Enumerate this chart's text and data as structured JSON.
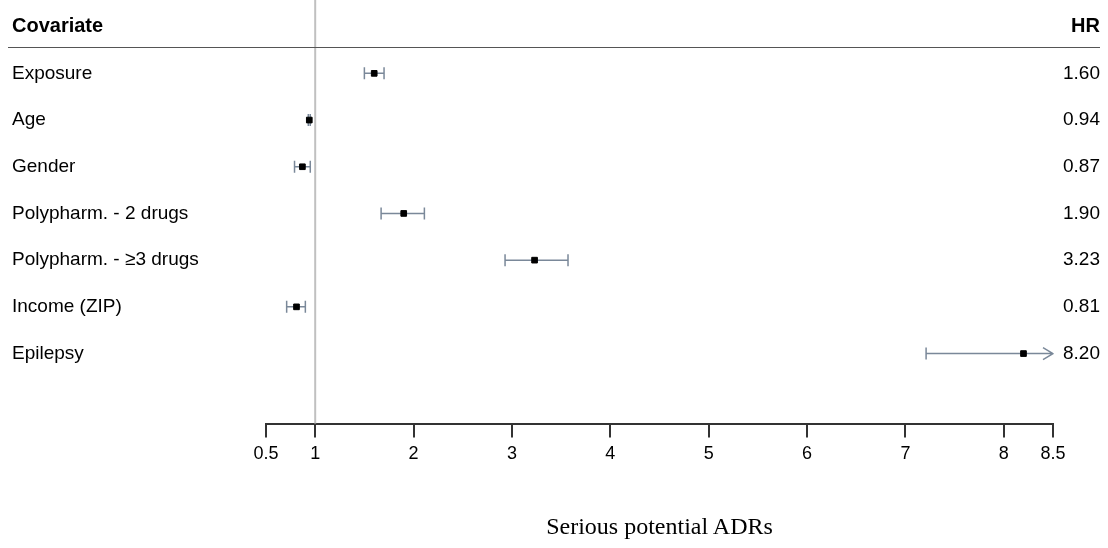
{
  "chart_data": {
    "type": "scatter",
    "orientation": "horizontal",
    "ylabel": "Covariate",
    "annotations": [
      "HR"
    ],
    "xlabel": "Serious potential ADRs",
    "categories": [
      "Exposure",
      "Age",
      "Gender",
      "Polypharm. - 2 drugs",
      "Polypharm. - ≥3 drugs",
      "Income (ZIP)",
      "Epilepsy"
    ],
    "values": [
      1.6,
      0.94,
      0.87,
      1.9,
      3.23,
      0.81,
      8.2
    ],
    "errors": [
      [
        1.5,
        1.7
      ],
      [
        0.93,
        0.95
      ],
      [
        0.79,
        0.95
      ],
      [
        1.67,
        2.11
      ],
      [
        2.93,
        3.57
      ],
      [
        0.71,
        0.9
      ],
      [
        7.21,
        8.5
      ]
    ],
    "value_labels": [
      "1.60",
      "0.94",
      "0.87",
      "1.90",
      "3.23",
      "0.81",
      "8.20"
    ],
    "color": "#000000",
    "marker": "square",
    "xlim": [
      0.5,
      8.5
    ],
    "xticks": [
      0.5,
      1,
      2,
      3,
      4,
      5,
      6,
      7,
      8,
      8.5
    ],
    "ref_lines": [
      {
        "axis": "x",
        "value": 1,
        "color": "#c0c0c0"
      }
    ]
  }
}
